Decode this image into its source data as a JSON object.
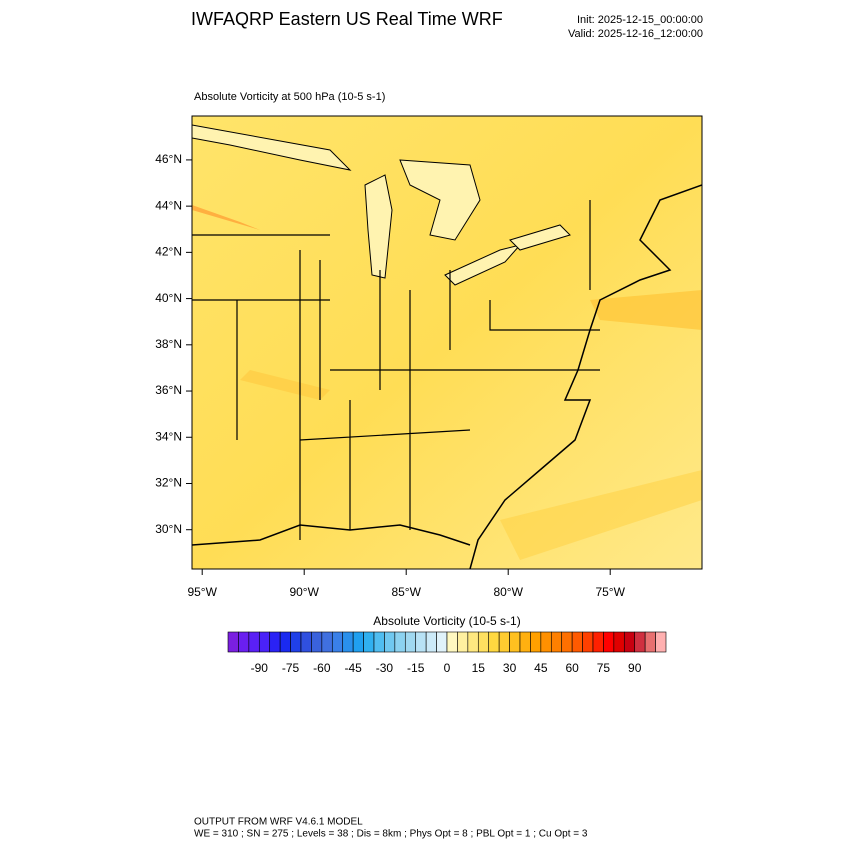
{
  "header": {
    "title": "IWFAQRP Eastern US Real Time WRF",
    "init": "Init: 2025-12-15_00:00:00",
    "valid": "Valid: 2025-12-16_12:00:00"
  },
  "map": {
    "title": "Absolute Vorticity at 500 hPa   (10-5 s-1)",
    "lat_range": [
      28.3,
      47.9
    ],
    "lon_range": [
      95.5,
      70.5
    ],
    "lat_labels": [
      {
        "value": 30,
        "label": "30°N"
      },
      {
        "value": 32,
        "label": "32°N"
      },
      {
        "value": 34,
        "label": "34°N"
      },
      {
        "value": 36,
        "label": "36°N"
      },
      {
        "value": 38,
        "label": "38°N"
      },
      {
        "value": 40,
        "label": "40°N"
      },
      {
        "value": 42,
        "label": "42°N"
      },
      {
        "value": 44,
        "label": "44°N"
      },
      {
        "value": 46,
        "label": "46°N"
      }
    ],
    "lon_labels": [
      {
        "value": 95,
        "label": "95°W"
      },
      {
        "value": 90,
        "label": "90°W"
      },
      {
        "value": 85,
        "label": "85°W"
      },
      {
        "value": 80,
        "label": "80°W"
      },
      {
        "value": 75,
        "label": "75°W"
      }
    ]
  },
  "colorbar": {
    "title": "Absolute Vorticity  (10-5 s-1)",
    "labels": [
      -90,
      -75,
      -60,
      -45,
      -30,
      -15,
      0,
      15,
      30,
      45,
      60,
      75,
      90
    ],
    "colors": [
      "#7a1fe0",
      "#6a1ff0",
      "#5a20f5",
      "#4a22f8",
      "#2a22f5",
      "#1a2af0",
      "#2040e8",
      "#3050e0",
      "#3a62dc",
      "#4070e0",
      "#3a80e8",
      "#2a90ec",
      "#20a0f0",
      "#30b0f0",
      "#50bdf0",
      "#70c8f0",
      "#8cd2f0",
      "#a0d8f0",
      "#b8e2f5",
      "#cceaf8",
      "#e0f2fa",
      "#fff8c0",
      "#fff0a0",
      "#ffe880",
      "#ffe060",
      "#ffd840",
      "#ffcc30",
      "#ffc020",
      "#ffb010",
      "#ffa000",
      "#ff9000",
      "#ff8000",
      "#ff7000",
      "#ff5a00",
      "#ff4000",
      "#ff2000",
      "#ff0000",
      "#e00000",
      "#c80010",
      "#d03040",
      "#e87070",
      "#ffb0b0"
    ]
  },
  "footer": {
    "line1": "OUTPUT FROM WRF V4.6.1 MODEL",
    "line2": "WE = 310 ; SN = 275 ; Levels = 38 ; Dis = 8km ; Phys Opt = 8 ; PBL Opt = 1 ; Cu Opt = 3"
  }
}
